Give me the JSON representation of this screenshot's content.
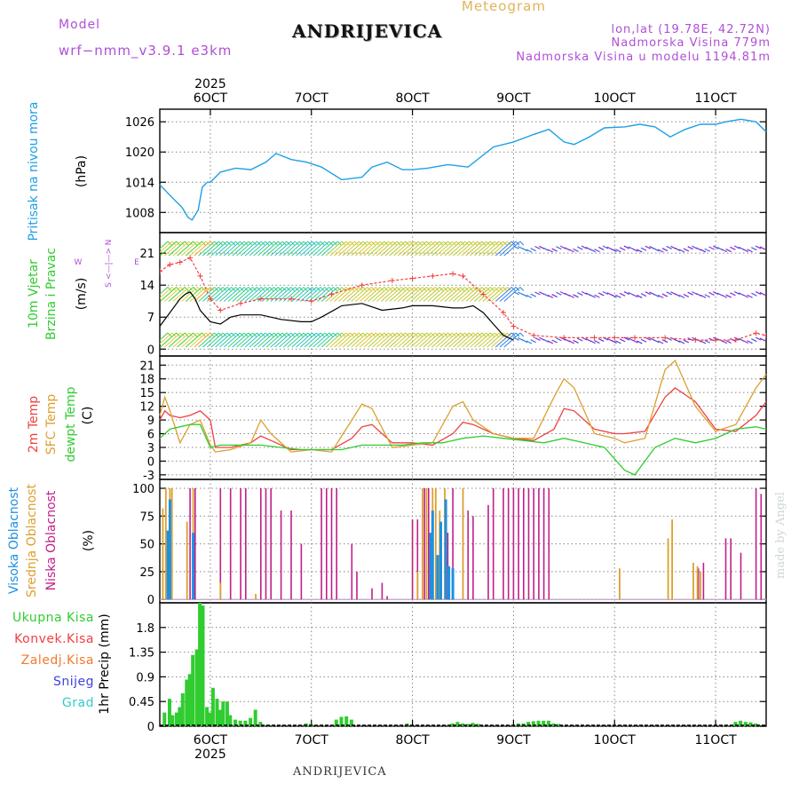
{
  "header": {
    "model_label": "Model",
    "model_name": "wrf−nmm_v3.9.1  e3km",
    "title": "ANDRIJEVICA",
    "meteogram_label": "Meteogram",
    "lonlat": "lon,lat (19.78E, 42.72N)",
    "elevation": "Nadmorska Visina 779m",
    "model_elevation": "Nadmorska Visina u modelu 1194.81m",
    "footer_title": "ANDRIJEVICA",
    "watermark": "made by Angel"
  },
  "colors": {
    "pressure": "#1ea0e6",
    "temp2m": "#f04040",
    "sfc": "#dca030",
    "dew": "#30cc30",
    "niska": "#c0208a",
    "srednja": "#dca030",
    "visoka": "#1e90e0",
    "precip": "#30cc30",
    "wind_speed": "#000000",
    "gust": "#f04040"
  },
  "chart_data": {
    "type": "line",
    "x_start_label": "2025",
    "x_end_label": "2025",
    "x_ticks": [
      "6OCT",
      "7OCT",
      "8OCT",
      "9OCT",
      "10OCT",
      "11OCT"
    ],
    "time_range_days": [
      5.5,
      11.5
    ],
    "panels": [
      {
        "name": "pressure",
        "ylabel": "Pritisak na nivou mora",
        "unit": "(hPa)",
        "yticks": [
          1008,
          1014,
          1020,
          1026
        ],
        "ylim": [
          1004,
          1028.5
        ],
        "series": [
          {
            "name": "Sea level pressure",
            "x": [
              5.5,
              5.62,
              5.72,
              5.78,
              5.82,
              5.88,
              5.92,
              5.97,
              6.0,
              6.1,
              6.25,
              6.4,
              6.55,
              6.65,
              6.8,
              6.95,
              7.1,
              7.3,
              7.5,
              7.6,
              7.75,
              7.9,
              8.0,
              8.15,
              8.35,
              8.55,
              8.8,
              9.0,
              9.2,
              9.35,
              9.5,
              9.6,
              9.75,
              9.9,
              10.1,
              10.25,
              10.4,
              10.55,
              10.7,
              10.85,
              11.0,
              11.1,
              11.25,
              11.4,
              11.5
            ],
            "values": [
              1013.5,
              1011,
              1009,
              1007,
              1006.5,
              1008.5,
              1013,
              1014,
              1014,
              1016,
              1016.8,
              1016.5,
              1018,
              1019.7,
              1018.5,
              1018,
              1017,
              1014.5,
              1015,
              1017,
              1018,
              1016.5,
              1016.5,
              1016.8,
              1017.5,
              1017,
              1021,
              1022,
              1023.5,
              1024.5,
              1022,
              1021.5,
              1023,
              1024.8,
              1025,
              1025.5,
              1025,
              1023,
              1024.5,
              1025.5,
              1025.5,
              1026,
              1026.5,
              1026,
              1024
            ]
          }
        ]
      },
      {
        "name": "wind",
        "ylabel": "10m Vjetar Brzina i Pravac",
        "unit": "(m/s)",
        "compass": [
          "N",
          "S",
          "W",
          "E"
        ],
        "yticks": [
          0,
          7,
          14,
          21
        ],
        "ylim": [
          -1.5,
          25.5
        ],
        "series": [
          {
            "name": "Wind speed",
            "x": [
              5.5,
              5.6,
              5.7,
              5.75,
              5.8,
              5.85,
              5.9,
              6.0,
              6.1,
              6.2,
              6.3,
              6.5,
              6.7,
              6.9,
              7.0,
              7.1,
              7.3,
              7.5,
              7.7,
              7.9,
              8.0,
              8.2,
              8.4,
              8.5,
              8.6,
              8.7,
              8.8,
              8.9,
              9.0
            ],
            "values": [
              5,
              8,
              11,
              12,
              12.5,
              11,
              8.5,
              6,
              5.5,
              7,
              7.5,
              7.5,
              6.5,
              6,
              6,
              7,
              9.5,
              10,
              8.5,
              9,
              9.5,
              9.5,
              9,
              9,
              9.5,
              8,
              5.5,
              3,
              2
            ]
          },
          {
            "name": "Gust",
            "x": [
              5.5,
              5.6,
              5.7,
              5.8,
              5.9,
              6.0,
              6.1,
              6.3,
              6.5,
              6.8,
              7.0,
              7.2,
              7.5,
              7.8,
              8.0,
              8.2,
              8.4,
              8.5,
              8.7,
              8.9,
              9.0,
              9.2,
              9.5,
              9.8,
              10.0,
              10.2,
              10.5,
              10.8,
              11.0,
              11.2,
              11.4,
              11.5
            ],
            "values": [
              17,
              18.5,
              19,
              20,
              16,
              11,
              8.5,
              10,
              11,
              11,
              10.5,
              12,
              14,
              15,
              15.5,
              16,
              16.5,
              16,
              12,
              8,
              5,
              3,
              2.5,
              2.5,
              2.5,
              2.5,
              2.5,
              2,
              2,
              2,
              3.5,
              3
            ]
          }
        ]
      },
      {
        "name": "temperature",
        "ylabel_2m": "2m Temp",
        "ylabel_sfc": "SFC Temp",
        "ylabel_dew": "dewpt Temp",
        "unit": "(C)",
        "yticks": [
          -3,
          0,
          3,
          6,
          9,
          12,
          15,
          18,
          21
        ],
        "ylim": [
          -4,
          23
        ],
        "series": [
          {
            "name": "2m Temp",
            "x": [
              5.5,
              5.55,
              5.6,
              5.7,
              5.8,
              5.9,
              6.0,
              6.05,
              6.2,
              6.4,
              6.5,
              6.6,
              6.8,
              7.0,
              7.2,
              7.4,
              7.5,
              7.6,
              7.8,
              8.0,
              8.2,
              8.4,
              8.5,
              8.6,
              8.8,
              9.0,
              9.2,
              9.4,
              9.5,
              9.6,
              9.8,
              10.0,
              10.1,
              10.3,
              10.5,
              10.6,
              10.8,
              11.0,
              11.2,
              11.4,
              11.5
            ],
            "values": [
              9,
              11,
              10,
              9.5,
              10,
              11,
              9,
              3,
              3,
              4,
              5.5,
              4.5,
              2.5,
              2.5,
              2.5,
              5,
              7.5,
              8,
              4,
              4,
              3.5,
              6,
              8.5,
              8,
              6,
              5,
              4.5,
              7,
              11.5,
              11,
              7,
              6,
              6,
              6.5,
              14,
              16,
              13,
              7,
              6.5,
              10,
              13
            ]
          },
          {
            "name": "SFC Temp",
            "x": [
              5.5,
              5.55,
              5.6,
              5.7,
              5.8,
              5.9,
              6.0,
              6.05,
              6.2,
              6.4,
              6.5,
              6.6,
              6.8,
              7.0,
              7.2,
              7.4,
              7.5,
              7.6,
              7.8,
              8.0,
              8.2,
              8.4,
              8.5,
              8.6,
              8.8,
              9.0,
              9.2,
              9.4,
              9.5,
              9.6,
              9.8,
              10.0,
              10.1,
              10.3,
              10.5,
              10.6,
              10.8,
              11.0,
              11.2,
              11.4,
              11.5
            ],
            "values": [
              10,
              14,
              11,
              4,
              8,
              9,
              3.5,
              2,
              2.5,
              4,
              9,
              6,
              2,
              2.5,
              2,
              9,
              12.5,
              11.5,
              3,
              3.5,
              4,
              12,
              13,
              9,
              6,
              5,
              5,
              14,
              18,
              16,
              6,
              5,
              4,
              5,
              20,
              22,
              12,
              6.5,
              8,
              16,
              19
            ]
          },
          {
            "name": "dewpt Temp",
            "x": [
              5.5,
              5.6,
              5.8,
              5.9,
              6.0,
              6.1,
              6.3,
              6.5,
              6.7,
              6.9,
              7.1,
              7.3,
              7.5,
              7.7,
              7.9,
              8.1,
              8.3,
              8.5,
              8.7,
              8.9,
              9.1,
              9.3,
              9.5,
              9.7,
              9.9,
              10.1,
              10.2,
              10.4,
              10.6,
              10.8,
              11.0,
              11.2,
              11.4,
              11.5
            ],
            "values": [
              5,
              7,
              8,
              8,
              3,
              3.5,
              3.5,
              3.5,
              3,
              2.5,
              2.5,
              2.5,
              3.5,
              3.5,
              3.5,
              4,
              4,
              5,
              5.5,
              5,
              4.5,
              4,
              5,
              4,
              3,
              -2,
              -3,
              3,
              5,
              4,
              5,
              7,
              7.5,
              7
            ]
          }
        ]
      },
      {
        "name": "cloud",
        "ylabel_visoka": "Visoka Oblacnost",
        "ylabel_srednja": "Srednja Oblacnost",
        "ylabel_niska": "Niska Oblacnost",
        "unit": "(%)",
        "yticks": [
          0,
          25,
          50,
          75,
          100
        ],
        "ylim": [
          -3,
          108
        ],
        "visoka": {
          "x": [
            5.58,
            5.6,
            5.83,
            8.18,
            8.2,
            8.25,
            8.28,
            8.33,
            8.36,
            8.4
          ],
          "values": [
            62,
            90,
            60,
            60,
            80,
            40,
            70,
            90,
            30,
            28
          ]
        },
        "srednja": {
          "x": [
            5.53,
            5.56,
            5.6,
            5.62,
            5.77,
            5.83,
            6.1,
            6.45,
            8.05,
            8.1,
            8.14,
            8.2,
            8.23,
            8.27,
            8.32,
            8.5,
            10.05,
            10.53,
            10.57,
            10.78,
            10.82,
            10.85
          ],
          "values": [
            82,
            100,
            100,
            100,
            70,
            100,
            15,
            5,
            25,
            100,
            100,
            100,
            100,
            80,
            100,
            100,
            28,
            55,
            72,
            33,
            30,
            25
          ]
        },
        "niska": {
          "x": [
            5.8,
            5.85,
            6.1,
            6.2,
            6.3,
            6.35,
            6.5,
            6.55,
            6.6,
            6.7,
            6.8,
            6.9,
            7.1,
            7.15,
            7.2,
            7.25,
            7.4,
            7.45,
            7.6,
            7.7,
            7.75,
            8.0,
            8.05,
            8.12,
            8.16,
            8.35,
            8.4,
            8.55,
            8.6,
            8.75,
            8.8,
            8.9,
            8.95,
            9.0,
            9.05,
            9.1,
            9.15,
            9.2,
            9.25,
            9.3,
            9.35,
            10.83,
            10.88,
            11.1,
            11.15,
            11.25,
            11.4,
            11.45
          ],
          "values": [
            100,
            100,
            100,
            100,
            100,
            100,
            100,
            100,
            100,
            80,
            80,
            50,
            100,
            100,
            100,
            100,
            50,
            25,
            10,
            15,
            3,
            72,
            72,
            100,
            100,
            60,
            100,
            80,
            75,
            85,
            100,
            100,
            100,
            100,
            100,
            100,
            100,
            100,
            100,
            100,
            100,
            28,
            33,
            55,
            55,
            42,
            100,
            95
          ]
        }
      },
      {
        "name": "precip",
        "ylabels": [
          "Ukupna Kisa",
          "Konvek.Kisa",
          "Zaledj.Kisa",
          "Snijeg",
          "Grad"
        ],
        "legend_colors": [
          "#30cc30",
          "#f04040",
          "#f07a30",
          "#4040e0",
          "#30cccc"
        ],
        "unit": "1hr Precip (mm)",
        "yticks": [
          0,
          0.45,
          0.9,
          1.35,
          1.8
        ],
        "ylim": [
          0,
          2.25
        ],
        "x": [
          5.55,
          5.6,
          5.63,
          5.67,
          5.7,
          5.73,
          5.77,
          5.8,
          5.83,
          5.87,
          5.9,
          5.93,
          5.97,
          6.0,
          6.03,
          6.07,
          6.1,
          6.13,
          6.17,
          6.2,
          6.25,
          6.3,
          6.35,
          6.4,
          6.45,
          6.5,
          6.95,
          7.0,
          7.25,
          7.3,
          7.35,
          7.4,
          7.95,
          8.4,
          8.45,
          8.5,
          8.55,
          8.6,
          8.65,
          9.05,
          9.1,
          9.15,
          9.2,
          9.25,
          9.3,
          9.35,
          9.4,
          9.45,
          11.2,
          11.25,
          11.3,
          11.35,
          11.4
        ],
        "values": [
          0.25,
          0.5,
          0.2,
          0.25,
          0.35,
          0.6,
          0.85,
          0.95,
          1.3,
          1.4,
          2.25,
          2.2,
          0.35,
          0.25,
          0.7,
          0.5,
          0.3,
          0.45,
          0.45,
          0.2,
          0.12,
          0.1,
          0.1,
          0.15,
          0.3,
          0.08,
          0.05,
          0.04,
          0.12,
          0.17,
          0.18,
          0.12,
          0.05,
          0.05,
          0.08,
          0.05,
          0.04,
          0.06,
          0.04,
          0.05,
          0.05,
          0.08,
          0.09,
          0.1,
          0.1,
          0.1,
          0.05,
          0.04,
          0.08,
          0.1,
          0.08,
          0.07,
          0.05
        ]
      }
    ]
  }
}
